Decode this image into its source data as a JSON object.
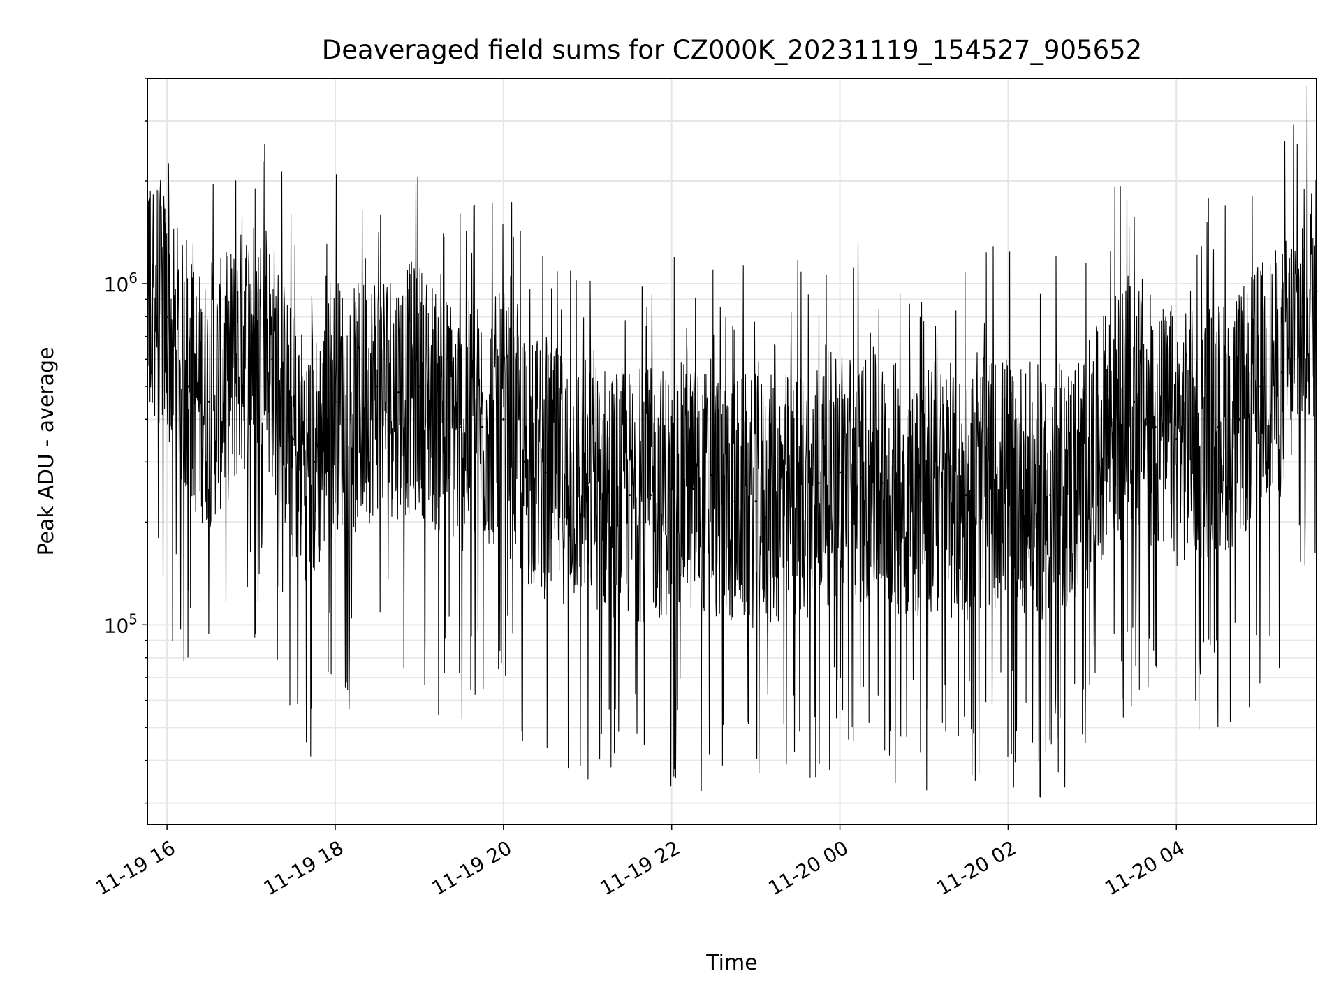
{
  "chart_data": {
    "type": "line",
    "title": "Deaveraged field sums for CZ000K_20231119_154527_905652",
    "xlabel": "Time",
    "ylabel": "Peak ADU - average",
    "x_axis": {
      "kind": "datetime",
      "range": [
        "2023-11-19 15:46",
        "2023-11-20 05:40"
      ],
      "ticks": [
        {
          "value": "2023-11-19 16:00",
          "label": "11-19 16"
        },
        {
          "value": "2023-11-19 18:00",
          "label": "11-19 18"
        },
        {
          "value": "2023-11-19 20:00",
          "label": "11-19 20"
        },
        {
          "value": "2023-11-19 22:00",
          "label": "11-19 22"
        },
        {
          "value": "2023-11-20 00:00",
          "label": "11-20 00"
        },
        {
          "value": "2023-11-20 02:00",
          "label": "11-20 02"
        },
        {
          "value": "2023-11-20 04:00",
          "label": "11-20 04"
        }
      ]
    },
    "y_axis": {
      "scale": "log",
      "range": [
        26000,
        4000000
      ],
      "major_ticks": [
        {
          "value": 100000,
          "label": "10^5",
          "base": "10",
          "exp": "5"
        },
        {
          "value": 1000000,
          "label": "10^6",
          "base": "10",
          "exp": "6"
        }
      ]
    },
    "grid": true,
    "line_color": "#000000",
    "series": [
      {
        "x": [
          "2023-11-19 15:46",
          "2023-11-19 16:00",
          "2023-11-19 16:15",
          "2023-11-19 16:30",
          "2023-11-19 16:45",
          "2023-11-19 17:00",
          "2023-11-19 17:15",
          "2023-11-19 17:30",
          "2023-11-19 17:45",
          "2023-11-19 18:00",
          "2023-11-19 18:15",
          "2023-11-19 18:30",
          "2023-11-19 18:45",
          "2023-11-19 19:00",
          "2023-11-19 19:15",
          "2023-11-19 19:30",
          "2023-11-19 19:45",
          "2023-11-19 20:00",
          "2023-11-19 20:15",
          "2023-11-19 20:30",
          "2023-11-19 20:45",
          "2023-11-19 21:00",
          "2023-11-19 21:15",
          "2023-11-19 21:30",
          "2023-11-19 21:45",
          "2023-11-19 22:00",
          "2023-11-19 22:15",
          "2023-11-19 22:30",
          "2023-11-19 22:45",
          "2023-11-19 23:00",
          "2023-11-19 23:15",
          "2023-11-19 23:30",
          "2023-11-19 23:45",
          "2023-11-20 00:00",
          "2023-11-20 00:15",
          "2023-11-20 00:30",
          "2023-11-20 00:45",
          "2023-11-20 01:00",
          "2023-11-20 01:15",
          "2023-11-20 01:30",
          "2023-11-20 01:45",
          "2023-11-20 02:00",
          "2023-11-20 02:15",
          "2023-11-20 02:30",
          "2023-11-20 02:45",
          "2023-11-20 03:00",
          "2023-11-20 03:15",
          "2023-11-20 03:30",
          "2023-11-20 03:45",
          "2023-11-20 04:00",
          "2023-11-20 04:15",
          "2023-11-20 04:30",
          "2023-11-20 04:45",
          "2023-11-20 05:00",
          "2023-11-20 05:15",
          "2023-11-20 05:30",
          "2023-11-20 05:40"
        ],
        "y": [
          1000000,
          800000,
          500000,
          450000,
          550000,
          700000,
          600000,
          350000,
          300000,
          450000,
          420000,
          500000,
          480000,
          500000,
          420000,
          380000,
          380000,
          400000,
          300000,
          280000,
          270000,
          260000,
          250000,
          240000,
          240000,
          250000,
          250000,
          240000,
          230000,
          230000,
          230000,
          240000,
          260000,
          280000,
          270000,
          260000,
          250000,
          240000,
          250000,
          240000,
          260000,
          270000,
          250000,
          240000,
          260000,
          300000,
          400000,
          450000,
          380000,
          350000,
          360000,
          380000,
          400000,
          500000,
          550000,
          800000,
          950000
        ]
      }
    ]
  }
}
